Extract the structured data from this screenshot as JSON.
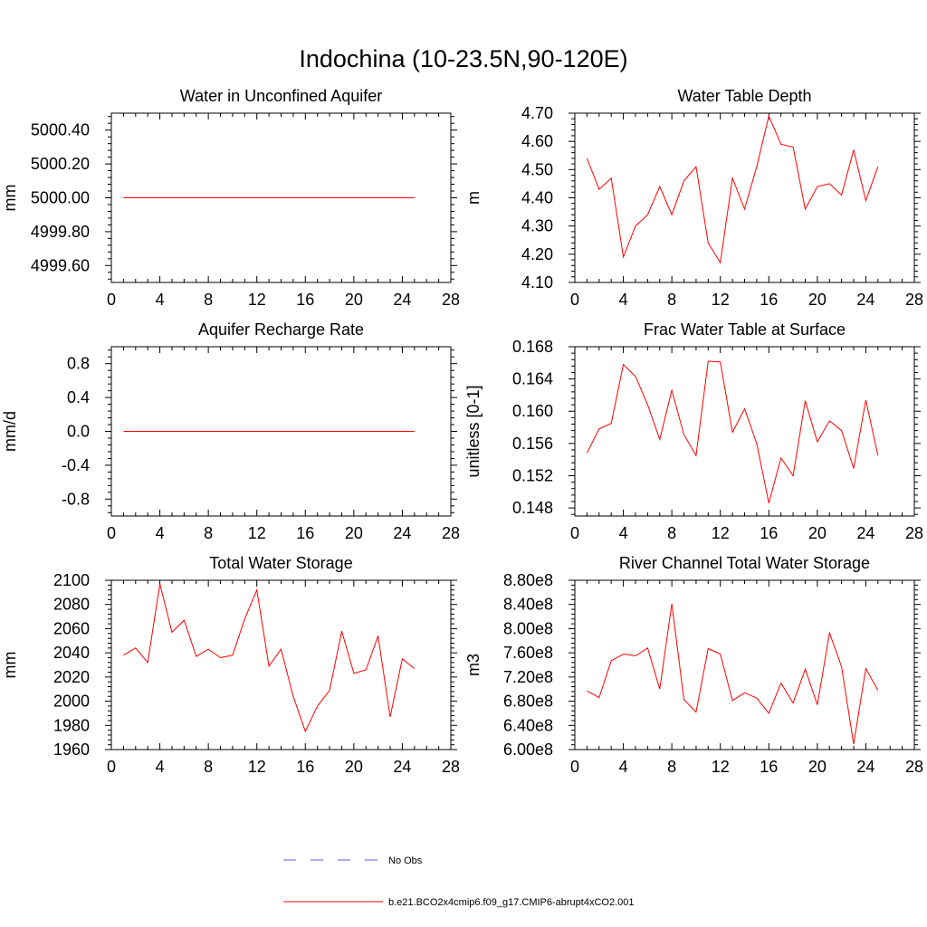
{
  "figure_title": "Indochina (10-23.5N,90-120E)",
  "chart_data": [
    {
      "type": "line",
      "title": "Water in Unconfined Aquifer",
      "xlabel": "",
      "ylabel": "mm",
      "xlim": [
        0,
        28
      ],
      "ylim": [
        4999.5,
        5000.5
      ],
      "xticks": [
        0,
        4,
        8,
        12,
        16,
        20,
        24,
        28
      ],
      "yticks": [
        4999.6,
        4999.8,
        5000.0,
        5000.2,
        5000.4
      ],
      "yticklabels": [
        "4999.60",
        "4999.80",
        "5000.00",
        "5000.20",
        "5000.40"
      ],
      "x": [
        1,
        2,
        3,
        4,
        5,
        6,
        7,
        8,
        9,
        10,
        11,
        12,
        13,
        14,
        15,
        16,
        17,
        18,
        19,
        20,
        21,
        22,
        23,
        24,
        25
      ],
      "series": [
        {
          "name": "b.e21.BCO2x4cmip6.f09_g17.CMIP6-abrupt4xCO2.001",
          "values": [
            5000,
            5000,
            5000,
            5000,
            5000,
            5000,
            5000,
            5000,
            5000,
            5000,
            5000,
            5000,
            5000,
            5000,
            5000,
            5000,
            5000,
            5000,
            5000,
            5000,
            5000,
            5000,
            5000,
            5000,
            5000
          ]
        }
      ]
    },
    {
      "type": "line",
      "title": "Water Table Depth",
      "xlabel": "",
      "ylabel": "m",
      "xlim": [
        0,
        28
      ],
      "ylim": [
        4.1,
        4.7
      ],
      "xticks": [
        0,
        4,
        8,
        12,
        16,
        20,
        24,
        28
      ],
      "yticks": [
        4.1,
        4.2,
        4.3,
        4.4,
        4.5,
        4.6,
        4.7
      ],
      "yticklabels": [
        "4.10",
        "4.20",
        "4.30",
        "4.40",
        "4.50",
        "4.60",
        "4.70"
      ],
      "x": [
        1,
        2,
        3,
        4,
        5,
        6,
        7,
        8,
        9,
        10,
        11,
        12,
        13,
        14,
        15,
        16,
        17,
        18,
        19,
        20,
        21,
        22,
        23,
        24,
        25
      ],
      "series": [
        {
          "name": "b.e21.BCO2x4cmip6.f09_g17.CMIP6-abrupt4xCO2.001",
          "values": [
            4.54,
            4.43,
            4.47,
            4.19,
            4.3,
            4.34,
            4.44,
            4.34,
            4.46,
            4.51,
            4.24,
            4.17,
            4.47,
            4.36,
            4.51,
            4.69,
            4.59,
            4.58,
            4.36,
            4.44,
            4.45,
            4.41,
            4.57,
            4.39,
            4.51
          ]
        }
      ]
    },
    {
      "type": "line",
      "title": "Aquifer Recharge Rate",
      "xlabel": "",
      "ylabel": "mm/d",
      "xlim": [
        0,
        28
      ],
      "ylim": [
        -1.0,
        1.0
      ],
      "xticks": [
        0,
        4,
        8,
        12,
        16,
        20,
        24,
        28
      ],
      "yticks": [
        -0.8,
        -0.4,
        0.0,
        0.4,
        0.8
      ],
      "yticklabels": [
        "-0.8",
        "-0.4",
        "0.0",
        "0.4",
        "0.8"
      ],
      "x": [
        1,
        2,
        3,
        4,
        5,
        6,
        7,
        8,
        9,
        10,
        11,
        12,
        13,
        14,
        15,
        16,
        17,
        18,
        19,
        20,
        21,
        22,
        23,
        24,
        25
      ],
      "series": [
        {
          "name": "b.e21.BCO2x4cmip6.f09_g17.CMIP6-abrupt4xCO2.001",
          "values": [
            0,
            0,
            0,
            0,
            0,
            0,
            0,
            0,
            0,
            0,
            0,
            0,
            0,
            0,
            0,
            0,
            0,
            0,
            0,
            0,
            0,
            0,
            0,
            0,
            0
          ]
        }
      ]
    },
    {
      "type": "line",
      "title": "Frac Water Table at Surface",
      "xlabel": "",
      "ylabel": "unitless [0-1]",
      "xlim": [
        0,
        28
      ],
      "ylim": [
        0.147,
        0.168
      ],
      "xticks": [
        0,
        4,
        8,
        12,
        16,
        20,
        24,
        28
      ],
      "yticks": [
        0.148,
        0.152,
        0.156,
        0.16,
        0.164,
        0.168
      ],
      "yticklabels": [
        "0.148",
        "0.152",
        "0.156",
        "0.160",
        "0.164",
        "0.168"
      ],
      "x": [
        1,
        2,
        3,
        4,
        5,
        6,
        7,
        8,
        9,
        10,
        11,
        12,
        13,
        14,
        15,
        16,
        17,
        18,
        19,
        20,
        21,
        22,
        23,
        24,
        25
      ],
      "series": [
        {
          "name": "b.e21.BCO2x4cmip6.f09_g17.CMIP6-abrupt4xCO2.001",
          "values": [
            0.1548,
            0.1578,
            0.1585,
            0.1658,
            0.1643,
            0.1608,
            0.1565,
            0.1626,
            0.1571,
            0.1545,
            0.1662,
            0.1661,
            0.1574,
            0.1603,
            0.156,
            0.1486,
            0.1542,
            0.152,
            0.1613,
            0.1562,
            0.1588,
            0.1576,
            0.1529,
            0.1614,
            0.1545
          ]
        }
      ]
    },
    {
      "type": "line",
      "title": "Total Water Storage",
      "xlabel": "",
      "ylabel": "mm",
      "xlim": [
        0,
        28
      ],
      "ylim": [
        1960,
        2100
      ],
      "xticks": [
        0,
        4,
        8,
        12,
        16,
        20,
        24,
        28
      ],
      "yticks": [
        1960,
        1980,
        2000,
        2020,
        2040,
        2060,
        2080,
        2100
      ],
      "yticklabels": [
        "1960",
        "1980",
        "2000",
        "2020",
        "2040",
        "2060",
        "2080",
        "2100"
      ],
      "x": [
        1,
        2,
        3,
        4,
        5,
        6,
        7,
        8,
        9,
        10,
        11,
        12,
        13,
        14,
        15,
        16,
        17,
        18,
        19,
        20,
        21,
        22,
        23,
        24,
        25
      ],
      "series": [
        {
          "name": "b.e21.BCO2x4cmip6.f09_g17.CMIP6-abrupt4xCO2.001",
          "values": [
            2038,
            2044,
            2032,
            2097,
            2057,
            2067,
            2037,
            2043,
            2036,
            2038,
            2068,
            2092,
            2029,
            2043,
            2004,
            1975,
            1996,
            2009,
            2058,
            2023,
            2026,
            2054,
            1987,
            2035,
            2027
          ]
        }
      ]
    },
    {
      "type": "line",
      "title": "River Channel Total Water Storage",
      "xlabel": "",
      "ylabel": "m3",
      "xlim": [
        0,
        28
      ],
      "ylim": [
        600000000.0,
        880000000.0
      ],
      "xticks": [
        0,
        4,
        8,
        12,
        16,
        20,
        24,
        28
      ],
      "yticks": [
        600000000.0,
        640000000.0,
        680000000.0,
        720000000.0,
        760000000.0,
        800000000.0,
        840000000.0,
        880000000.0
      ],
      "yticklabels": [
        "6.00e8",
        "6.40e8",
        "6.80e8",
        "7.20e8",
        "7.60e8",
        "8.00e8",
        "8.40e8",
        "8.80e8"
      ],
      "x": [
        1,
        2,
        3,
        4,
        5,
        6,
        7,
        8,
        9,
        10,
        11,
        12,
        13,
        14,
        15,
        16,
        17,
        18,
        19,
        20,
        21,
        22,
        23,
        24,
        25
      ],
      "series": [
        {
          "name": "b.e21.BCO2x4cmip6.f09_g17.CMIP6-abrupt4xCO2.001",
          "values": [
            697000000.0,
            686000000.0,
            747000000.0,
            758000000.0,
            755000000.0,
            768000000.0,
            700000000.0,
            841000000.0,
            683000000.0,
            662000000.0,
            767000000.0,
            758000000.0,
            681000000.0,
            694000000.0,
            685000000.0,
            660000000.0,
            710000000.0,
            677000000.0,
            733000000.0,
            674000000.0,
            793000000.0,
            737000000.0,
            609000000.0,
            734000000.0,
            698000000.0
          ]
        }
      ]
    }
  ],
  "legend": {
    "items": [
      {
        "label": "No Obs",
        "color": "#5b5bd6",
        "style": "dashed"
      },
      {
        "label": "b.e21.BCO2x4cmip6.f09_g17.CMIP6-abrupt4xCO2.001",
        "color": "#ff0000",
        "style": "solid"
      }
    ]
  }
}
